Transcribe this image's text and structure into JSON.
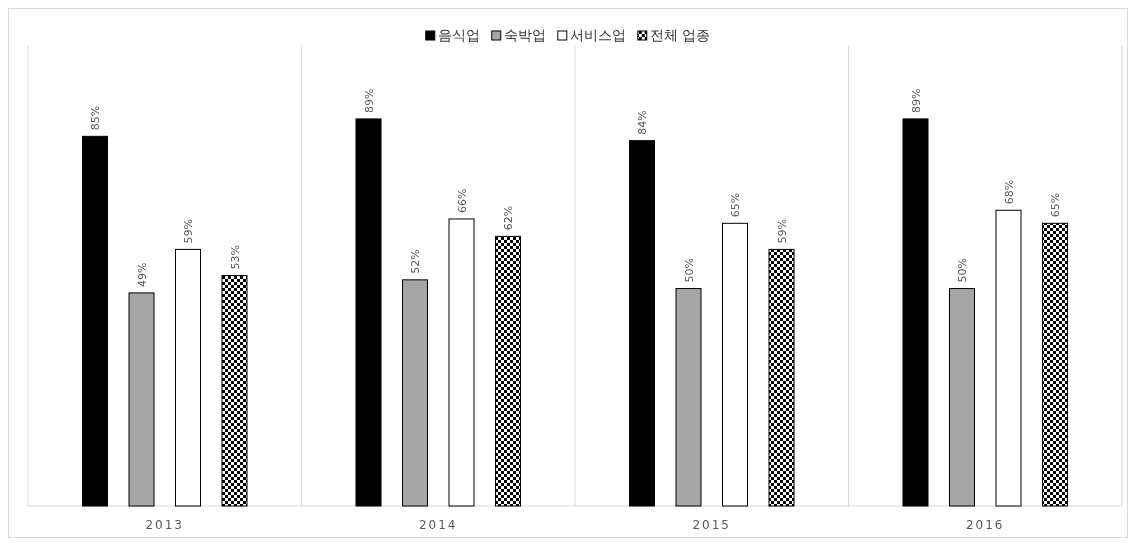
{
  "chart_data": {
    "type": "bar",
    "categories": [
      "2013",
      "2014",
      "2015",
      "2016"
    ],
    "ylim": [
      0,
      106
    ],
    "grid": "x",
    "legend": "top",
    "series": [
      {
        "name": "음식업",
        "color": "#000000",
        "values": [
          85,
          89,
          84,
          89
        ],
        "value_labels": [
          "85%",
          "89%",
          "84%",
          "89%"
        ]
      },
      {
        "name": "숙박업",
        "color": "#a6a6a6",
        "values": [
          49,
          52,
          50,
          50
        ],
        "value_labels": [
          "49%",
          "52%",
          "50%",
          "50%"
        ]
      },
      {
        "name": "서비스업",
        "color": "#ffffff",
        "values": [
          59,
          66,
          65,
          68
        ],
        "value_labels": [
          "59%",
          "66%",
          "65%",
          "68%"
        ]
      },
      {
        "name": "전체 업종",
        "color": "#000000",
        "values": [
          53,
          62,
          59,
          65
        ],
        "value_labels": [
          "53%",
          "62%",
          "59%",
          "65%"
        ]
      }
    ]
  }
}
